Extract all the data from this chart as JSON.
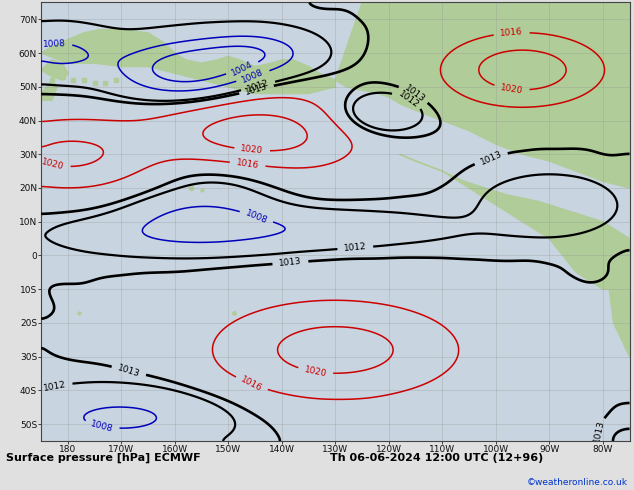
{
  "title": "Surface pressure [hPa] ECMWF",
  "datetime_label": "Th 06-06-2024 12:00 UTC (12+96)",
  "copyright": "©weatheronline.co.uk",
  "figsize": [
    6.34,
    4.9
  ],
  "dpi": 100,
  "bg_ocean": "#c8d4e0",
  "bg_land": "#b0cc98",
  "bg_figure": "#c8d4e0",
  "bg_bottom": "#e0e0e0",
  "grid_color": "#999999",
  "axis_label_color": "#111111",
  "xlabel_fontsize": 6.5,
  "ylabel_fontsize": 6.5,
  "title_fontsize": 8,
  "copyright_color": "#0033cc",
  "contour_black": "#000000",
  "contour_red": "#cc0000",
  "contour_blue": "#0000bb",
  "contour_lw_main": 1.6,
  "contour_lw_thin": 1.1,
  "label_fontsize": 6.5,
  "xticks": [
    -180,
    -170,
    -160,
    -150,
    -140,
    -130,
    -120,
    -110,
    -100,
    -90,
    -80
  ],
  "yticks": [
    -50,
    -40,
    -30,
    -20,
    -10,
    0,
    10,
    20,
    30,
    40,
    50,
    60,
    70
  ],
  "xlim": [
    -185,
    -75
  ],
  "ylim": [
    -55,
    75
  ]
}
